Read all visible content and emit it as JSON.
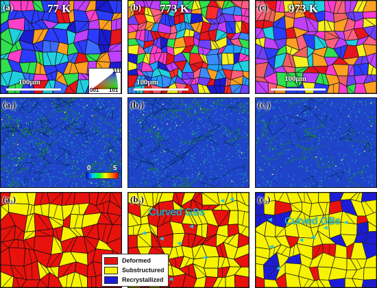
{
  "panels": {
    "a": {
      "label": "(a)",
      "temp": "77 K",
      "scale": "100μm"
    },
    "b": {
      "label": "(b)",
      "temp": "773 K",
      "scale": "100μm"
    },
    "c": {
      "label": "(c)",
      "temp": "973 K",
      "scale": "100μm"
    },
    "a1": {
      "label": "(a₁)"
    },
    "b1": {
      "label": "(b₁)"
    },
    "c1": {
      "label": "(c₁)"
    },
    "a2": {
      "label": "(a₂)"
    },
    "b2": {
      "label": "(b₂)",
      "annotation": "Curved GBs"
    },
    "c2": {
      "label": "(c₂)",
      "annotation": "Curved GBs"
    }
  },
  "ipf_key": {
    "corner_left": "001",
    "corner_right": "101",
    "corner_top": "111"
  },
  "kam_scale": {
    "min": "0",
    "max": "5"
  },
  "legend": {
    "items": [
      {
        "label": "Deformed",
        "color": "#e8120c"
      },
      {
        "label": "Substructured",
        "color": "#f7f200"
      },
      {
        "label": "Recrystallized",
        "color": "#1c1cd8"
      }
    ]
  },
  "colors": {
    "kam_background": "#1f44c8",
    "deformed": "#e8120c",
    "substructured": "#f7f200",
    "recrystallized": "#1c1cd8",
    "annotation": "#22c4e8"
  }
}
